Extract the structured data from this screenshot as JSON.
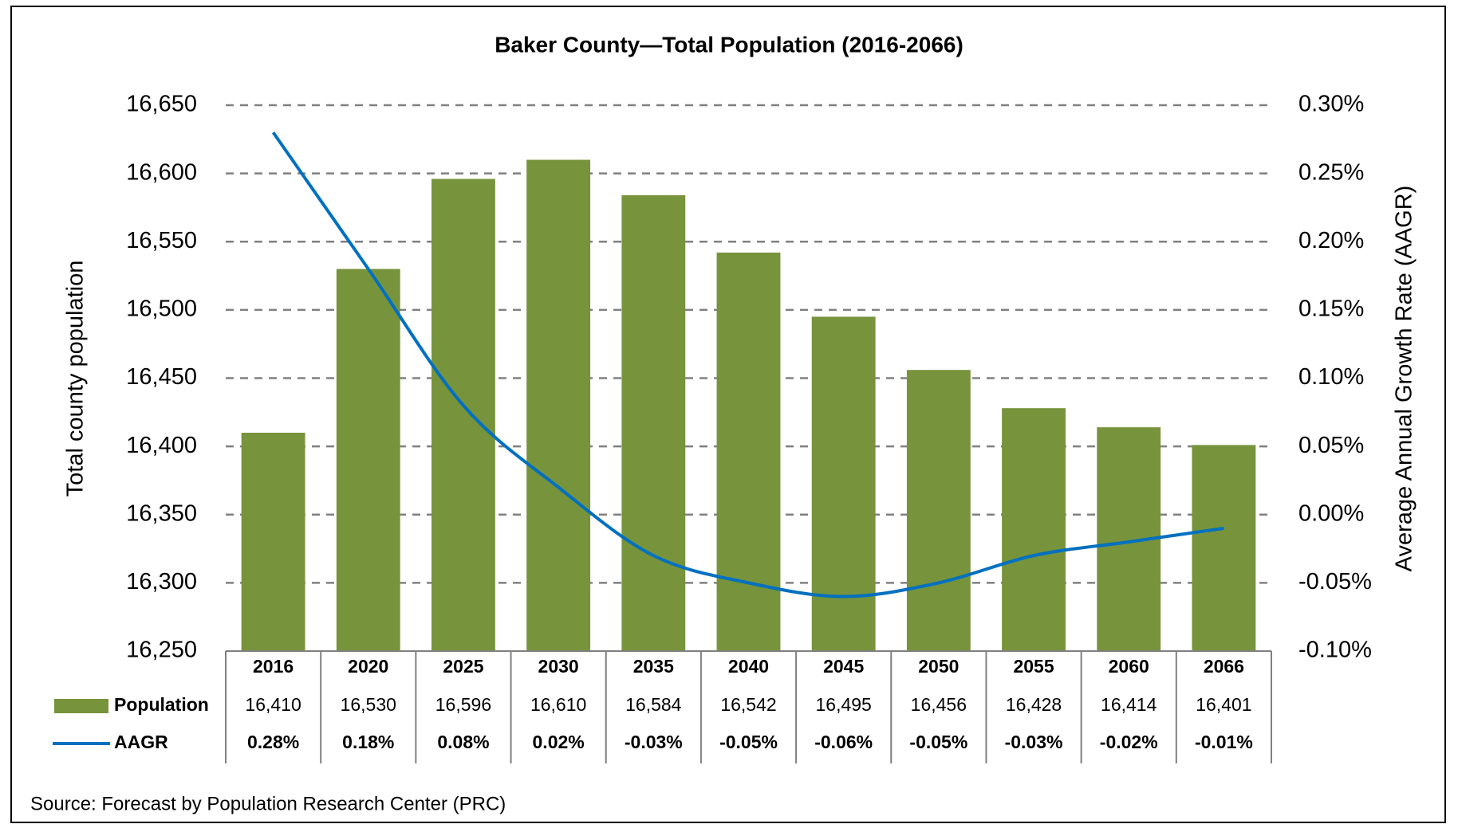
{
  "chart_data": {
    "type": "bar",
    "title": "Baker County—Total Population (2016-2066)",
    "ylabel": "Total county population",
    "y2label": "Average Annual Growth Rate (AAGR)",
    "source": "Source: Forecast by Population Research Center (PRC)",
    "categories": [
      "2016",
      "2020",
      "2025",
      "2030",
      "2035",
      "2040",
      "2045",
      "2050",
      "2055",
      "2060",
      "2066"
    ],
    "series": [
      {
        "name": "Population",
        "type": "bar",
        "color": "#77933c",
        "values": [
          16410,
          16530,
          16596,
          16610,
          16584,
          16542,
          16495,
          16456,
          16428,
          16414,
          16401
        ],
        "value_labels": [
          "16,410",
          "16,530",
          "16,596",
          "16,610",
          "16,584",
          "16,542",
          "16,495",
          "16,456",
          "16,428",
          "16,414",
          "16,401"
        ]
      },
      {
        "name": "AAGR",
        "type": "line",
        "axis": "y2",
        "color": "#0070c0",
        "values": [
          0.28,
          0.18,
          0.08,
          0.02,
          -0.03,
          -0.05,
          -0.06,
          -0.05,
          -0.03,
          -0.02,
          -0.01
        ],
        "value_labels": [
          "0.28%",
          "0.18%",
          "0.08%",
          "0.02%",
          "-0.03%",
          "-0.05%",
          "-0.06%",
          "-0.05%",
          "-0.03%",
          "-0.02%",
          "-0.01%"
        ]
      }
    ],
    "ylim": [
      16250,
      16650
    ],
    "yticks": [
      {
        "value": 16250,
        "label": "16,250"
      },
      {
        "value": 16300,
        "label": "16,300"
      },
      {
        "value": 16350,
        "label": "16,350"
      },
      {
        "value": 16400,
        "label": "16,400"
      },
      {
        "value": 16450,
        "label": "16,450"
      },
      {
        "value": 16500,
        "label": "16,500"
      },
      {
        "value": 16550,
        "label": "16,550"
      },
      {
        "value": 16600,
        "label": "16,600"
      },
      {
        "value": 16650,
        "label": "16,650"
      }
    ],
    "y2lim": [
      -0.1,
      0.3
    ],
    "y2ticks": [
      {
        "value": -0.1,
        "label": "-0.10%"
      },
      {
        "value": -0.05,
        "label": "-0.05%"
      },
      {
        "value": 0,
        "label": "0.00%"
      },
      {
        "value": 0.05,
        "label": "0.05%"
      },
      {
        "value": 0.1,
        "label": "0.10%"
      },
      {
        "value": 0.15,
        "label": "0.15%"
      },
      {
        "value": 0.2,
        "label": "0.20%"
      },
      {
        "value": 0.25,
        "label": "0.25%"
      },
      {
        "value": 0.3,
        "label": "0.30%"
      }
    ],
    "grid": true
  }
}
